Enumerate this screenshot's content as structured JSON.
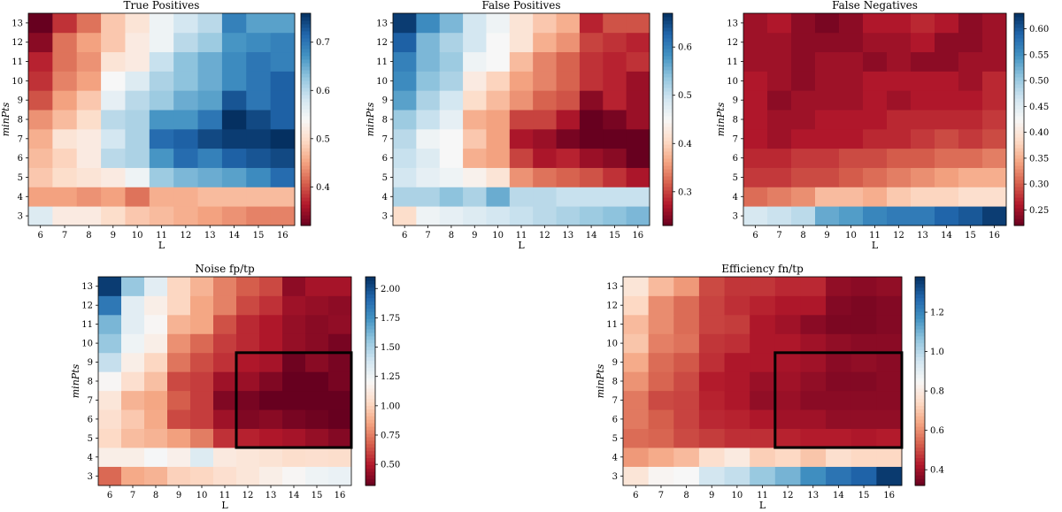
{
  "figure": {
    "description_free": true
  },
  "chart_data": [
    {
      "type": "heatmap",
      "title": "True Positives",
      "xlabel": "L",
      "ylabel": "minPts",
      "x": [
        6,
        7,
        8,
        9,
        10,
        11,
        12,
        13,
        14,
        15,
        16
      ],
      "y": [
        3,
        4,
        5,
        6,
        7,
        8,
        9,
        10,
        11,
        12,
        13
      ],
      "colormap": "RdBu",
      "colorbar_range": [
        0.32,
        0.76
      ],
      "colorbar_ticks": [
        "0.4",
        "0.5",
        "0.6",
        "0.7"
      ],
      "colorbar_tick_values": [
        0.4,
        0.5,
        0.6,
        0.7
      ],
      "values": [
        [
          0.57,
          0.52,
          0.52,
          0.5,
          0.48,
          0.47,
          0.46,
          0.45,
          0.44,
          0.43,
          0.43
        ],
        [
          0.45,
          0.45,
          0.44,
          0.45,
          0.42,
          0.46,
          0.46,
          0.47,
          0.47,
          0.47,
          0.47
        ],
        [
          0.48,
          0.5,
          0.51,
          0.52,
          0.55,
          0.62,
          0.64,
          0.65,
          0.66,
          0.68,
          0.71
        ],
        [
          0.47,
          0.49,
          0.52,
          0.6,
          0.61,
          0.67,
          0.71,
          0.69,
          0.72,
          0.73,
          0.74
        ],
        [
          0.46,
          0.51,
          0.52,
          0.58,
          0.61,
          0.71,
          0.72,
          0.74,
          0.75,
          0.75,
          0.76
        ],
        [
          0.44,
          0.47,
          0.5,
          0.6,
          0.61,
          0.67,
          0.67,
          0.7,
          0.76,
          0.74,
          0.72
        ],
        [
          0.4,
          0.45,
          0.48,
          0.56,
          0.6,
          0.62,
          0.65,
          0.66,
          0.73,
          0.7,
          0.72
        ],
        [
          0.38,
          0.43,
          0.45,
          0.54,
          0.57,
          0.61,
          0.63,
          0.65,
          0.68,
          0.7,
          0.72
        ],
        [
          0.37,
          0.42,
          0.44,
          0.51,
          0.52,
          0.59,
          0.63,
          0.65,
          0.68,
          0.7,
          0.69
        ],
        [
          0.34,
          0.42,
          0.45,
          0.48,
          0.52,
          0.55,
          0.6,
          0.62,
          0.67,
          0.68,
          0.69
        ],
        [
          0.32,
          0.38,
          0.42,
          0.48,
          0.51,
          0.55,
          0.58,
          0.6,
          0.69,
          0.66,
          0.66
        ]
      ]
    },
    {
      "type": "heatmap",
      "title": "False Positives",
      "xlabel": "L",
      "ylabel": "minPts",
      "x": [
        6,
        7,
        8,
        9,
        10,
        11,
        12,
        13,
        14,
        15,
        16
      ],
      "y": [
        3,
        4,
        5,
        6,
        7,
        8,
        9,
        10,
        11,
        12,
        13
      ],
      "colormap": "RdBu",
      "colorbar_range": [
        0.23,
        0.67
      ],
      "colorbar_ticks": [
        "0.3",
        "0.4",
        "0.5",
        "0.6"
      ],
      "colorbar_tick_values": [
        0.3,
        0.4,
        0.5,
        0.6
      ],
      "values": [
        [
          0.41,
          0.46,
          0.47,
          0.48,
          0.49,
          0.5,
          0.51,
          0.52,
          0.53,
          0.54,
          0.55
        ],
        [
          0.52,
          0.52,
          0.54,
          0.52,
          0.56,
          0.51,
          0.51,
          0.5,
          0.5,
          0.5,
          0.5
        ],
        [
          0.49,
          0.47,
          0.46,
          0.44,
          0.42,
          0.35,
          0.33,
          0.32,
          0.31,
          0.29,
          0.27
        ],
        [
          0.5,
          0.48,
          0.45,
          0.37,
          0.36,
          0.3,
          0.27,
          0.28,
          0.26,
          0.25,
          0.23
        ],
        [
          0.51,
          0.46,
          0.45,
          0.39,
          0.36,
          0.27,
          0.26,
          0.24,
          0.23,
          0.23,
          0.22
        ],
        [
          0.53,
          0.5,
          0.47,
          0.37,
          0.36,
          0.3,
          0.3,
          0.27,
          0.22,
          0.24,
          0.26
        ],
        [
          0.57,
          0.52,
          0.49,
          0.41,
          0.38,
          0.35,
          0.32,
          0.31,
          0.25,
          0.28,
          0.26
        ],
        [
          0.59,
          0.54,
          0.52,
          0.43,
          0.4,
          0.36,
          0.34,
          0.32,
          0.29,
          0.28,
          0.26
        ],
        [
          0.6,
          0.55,
          0.53,
          0.46,
          0.45,
          0.38,
          0.34,
          0.32,
          0.29,
          0.28,
          0.29
        ],
        [
          0.63,
          0.55,
          0.52,
          0.49,
          0.45,
          0.42,
          0.37,
          0.35,
          0.3,
          0.29,
          0.28
        ],
        [
          0.66,
          0.59,
          0.55,
          0.49,
          0.46,
          0.42,
          0.39,
          0.37,
          0.28,
          0.31,
          0.31
        ]
      ]
    },
    {
      "type": "heatmap",
      "title": "False Negatives",
      "xlabel": "L",
      "ylabel": "minPts",
      "x": [
        6,
        7,
        8,
        9,
        10,
        11,
        12,
        13,
        14,
        15,
        16
      ],
      "y": [
        3,
        4,
        5,
        6,
        7,
        8,
        9,
        10,
        11,
        12,
        13
      ],
      "colormap": "RdBu",
      "colorbar_range": [
        0.22,
        0.63
      ],
      "colorbar_ticks": [
        "0.25",
        "0.30",
        "0.35",
        "0.40",
        "0.45",
        "0.50",
        "0.55",
        "0.60"
      ],
      "colorbar_tick_values": [
        0.25,
        0.3,
        0.35,
        0.4,
        0.45,
        0.5,
        0.55,
        0.6
      ],
      "values": [
        [
          0.46,
          0.47,
          0.48,
          0.53,
          0.54,
          0.56,
          0.57,
          0.57,
          0.59,
          0.6,
          0.62
        ],
        [
          0.31,
          0.32,
          0.33,
          0.36,
          0.36,
          0.35,
          0.37,
          0.38,
          0.38,
          0.39,
          0.39
        ],
        [
          0.28,
          0.28,
          0.29,
          0.29,
          0.3,
          0.31,
          0.32,
          0.33,
          0.34,
          0.35,
          0.35
        ],
        [
          0.27,
          0.27,
          0.28,
          0.28,
          0.29,
          0.29,
          0.3,
          0.3,
          0.31,
          0.31,
          0.32
        ],
        [
          0.26,
          0.25,
          0.26,
          0.26,
          0.26,
          0.27,
          0.27,
          0.28,
          0.29,
          0.28,
          0.29
        ],
        [
          0.26,
          0.25,
          0.25,
          0.26,
          0.26,
          0.26,
          0.27,
          0.27,
          0.27,
          0.27,
          0.28
        ],
        [
          0.26,
          0.24,
          0.25,
          0.25,
          0.25,
          0.26,
          0.25,
          0.26,
          0.26,
          0.26,
          0.27
        ],
        [
          0.26,
          0.25,
          0.24,
          0.25,
          0.25,
          0.26,
          0.26,
          0.26,
          0.26,
          0.25,
          0.27
        ],
        [
          0.25,
          0.25,
          0.24,
          0.25,
          0.25,
          0.24,
          0.25,
          0.24,
          0.24,
          0.25,
          0.25
        ],
        [
          0.25,
          0.25,
          0.24,
          0.24,
          0.24,
          0.25,
          0.25,
          0.26,
          0.24,
          0.24,
          0.25
        ],
        [
          0.25,
          0.26,
          0.24,
          0.23,
          0.24,
          0.26,
          0.26,
          0.27,
          0.26,
          0.24,
          0.25
        ]
      ]
    },
    {
      "type": "heatmap",
      "title": "Noise fp/tp",
      "xlabel": "L",
      "ylabel": "minPts",
      "x": [
        6,
        7,
        8,
        9,
        10,
        11,
        12,
        13,
        14,
        15,
        16
      ],
      "y": [
        3,
        4,
        5,
        6,
        7,
        8,
        9,
        10,
        11,
        12,
        13
      ],
      "colormap": "RdBu",
      "colorbar_range": [
        0.32,
        2.1
      ],
      "colorbar_ticks": [
        "0.50",
        "0.75",
        "1.00",
        "1.25",
        "1.50",
        "1.75",
        "2.00"
      ],
      "colorbar_tick_values": [
        0.5,
        0.75,
        1.0,
        1.25,
        1.5,
        1.75,
        2.0
      ],
      "highlight_box": {
        "x_from": 12,
        "x_to": 16,
        "y_from": 5,
        "y_to": 9
      },
      "values": [
        [
          0.7,
          0.87,
          0.9,
          1.0,
          1.02,
          1.06,
          1.1,
          1.15,
          1.2,
          1.25,
          1.27
        ],
        [
          1.15,
          1.15,
          1.22,
          1.16,
          1.33,
          1.12,
          1.1,
          1.08,
          1.05,
          1.06,
          1.05
        ],
        [
          1.03,
          0.93,
          0.9,
          0.84,
          0.75,
          0.56,
          0.52,
          0.49,
          0.47,
          0.43,
          0.39
        ],
        [
          1.06,
          0.97,
          0.87,
          0.62,
          0.59,
          0.45,
          0.38,
          0.4,
          0.36,
          0.34,
          0.31
        ],
        [
          1.1,
          0.9,
          0.86,
          0.67,
          0.59,
          0.38,
          0.36,
          0.32,
          0.31,
          0.3,
          0.29
        ],
        [
          1.2,
          1.06,
          0.94,
          0.62,
          0.59,
          0.45,
          0.44,
          0.38,
          0.29,
          0.32,
          0.36
        ],
        [
          1.42,
          1.15,
          1.02,
          0.73,
          0.63,
          0.56,
          0.49,
          0.47,
          0.34,
          0.4,
          0.36
        ],
        [
          1.55,
          1.25,
          1.15,
          0.8,
          0.7,
          0.59,
          0.54,
          0.49,
          0.43,
          0.4,
          0.36
        ],
        [
          1.62,
          1.31,
          1.2,
          0.9,
          0.86,
          0.64,
          0.54,
          0.49,
          0.43,
          0.4,
          0.42
        ],
        [
          1.85,
          1.31,
          1.15,
          1.02,
          0.86,
          0.76,
          0.62,
          0.56,
          0.45,
          0.43,
          0.41
        ],
        [
          2.06,
          1.55,
          1.31,
          1.02,
          0.9,
          0.76,
          0.67,
          0.62,
          0.41,
          0.47,
          0.47
        ]
      ]
    },
    {
      "type": "heatmap",
      "title": "Efficiency fn/tp",
      "xlabel": "L",
      "ylabel": "minPts",
      "x": [
        6,
        7,
        8,
        9,
        10,
        11,
        12,
        13,
        14,
        15,
        16
      ],
      "y": [
        3,
        4,
        5,
        6,
        7,
        8,
        9,
        10,
        11,
        12,
        13
      ],
      "colormap": "RdBu",
      "colorbar_range": [
        0.32,
        1.38
      ],
      "colorbar_ticks": [
        "0.4",
        "0.6",
        "0.8",
        "1.0",
        "1.2"
      ],
      "colorbar_tick_values": [
        0.4,
        0.6,
        0.8,
        1.0,
        1.2
      ],
      "highlight_box": {
        "x_from": 12,
        "x_to": 16,
        "y_from": 5,
        "y_to": 9
      },
      "values": [
        [
          0.78,
          0.84,
          0.85,
          0.95,
          0.98,
          1.05,
          1.1,
          1.18,
          1.24,
          1.28,
          1.36
        ],
        [
          0.62,
          0.65,
          0.68,
          0.76,
          0.8,
          0.72,
          0.74,
          0.7,
          0.76,
          0.74,
          0.74
        ],
        [
          0.55,
          0.54,
          0.5,
          0.48,
          0.46,
          0.46,
          0.44,
          0.43,
          0.43,
          0.42,
          0.43
        ],
        [
          0.57,
          0.53,
          0.49,
          0.45,
          0.44,
          0.42,
          0.4,
          0.4,
          0.38,
          0.38,
          0.38
        ],
        [
          0.57,
          0.5,
          0.49,
          0.44,
          0.42,
          0.38,
          0.39,
          0.37,
          0.37,
          0.37,
          0.37
        ],
        [
          0.61,
          0.54,
          0.5,
          0.43,
          0.42,
          0.39,
          0.4,
          0.38,
          0.36,
          0.36,
          0.37
        ],
        [
          0.65,
          0.55,
          0.52,
          0.46,
          0.42,
          0.42,
          0.41,
          0.4,
          0.37,
          0.38,
          0.37
        ],
        [
          0.7,
          0.58,
          0.56,
          0.47,
          0.46,
          0.42,
          0.42,
          0.4,
          0.38,
          0.37,
          0.37
        ],
        [
          0.68,
          0.6,
          0.55,
          0.49,
          0.48,
          0.42,
          0.4,
          0.37,
          0.35,
          0.35,
          0.36
        ],
        [
          0.74,
          0.6,
          0.55,
          0.49,
          0.46,
          0.44,
          0.42,
          0.42,
          0.36,
          0.35,
          0.36
        ],
        [
          0.78,
          0.68,
          0.62,
          0.5,
          0.47,
          0.47,
          0.45,
          0.45,
          0.38,
          0.37,
          0.38
        ]
      ]
    }
  ]
}
